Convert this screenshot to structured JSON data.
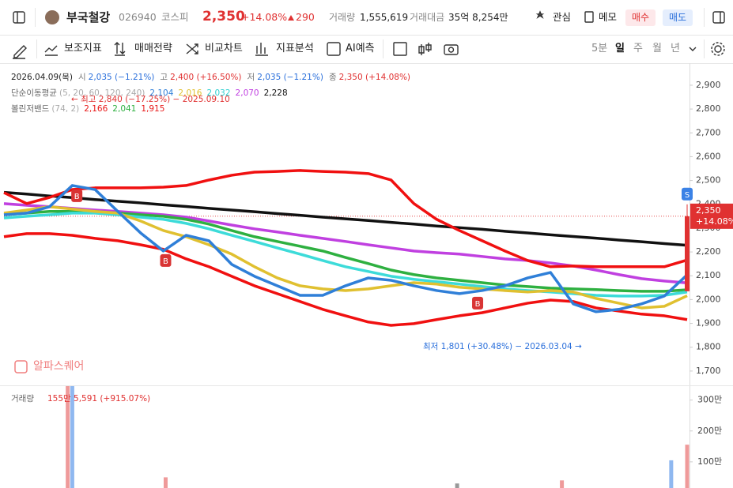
{
  "header": {
    "name": "부국철강",
    "code": "026940",
    "market": "코스피",
    "price": "2,350",
    "change_pct": "+14.08%",
    "change": "290",
    "volume_label": "거래량",
    "volume": "1,555,619",
    "amount_label": "거래대금",
    "amount": "35억 8,254만",
    "watch": "관심",
    "memo": "메모",
    "buy": "매수",
    "sell": "매도"
  },
  "toolbar": {
    "tools": [
      "보조지표",
      "매매전략",
      "비교차트",
      "지표분석",
      "AI예측"
    ],
    "periods": [
      "5분",
      "일",
      "주",
      "월",
      "년"
    ],
    "selected_period": 1
  },
  "legend": {
    "date": "2026.04.09(목)",
    "ohlc": [
      {
        "label": "시",
        "value": "2,035 (−1.21%)",
        "color": "#2a6fdb"
      },
      {
        "label": "고",
        "value": "2,400 (+16.50%)",
        "color": "#e03131"
      },
      {
        "label": "저",
        "value": "2,035 (−1.21%)",
        "color": "#2a6fdb"
      },
      {
        "label": "종",
        "value": "2,350 (+14.08%)",
        "color": "#e03131"
      }
    ],
    "ma": {
      "label": "단순이동평균",
      "params": "(5, 20, 60, 120, 240)",
      "values": [
        {
          "value": "2,104",
          "color": "#2f7fd8"
        },
        {
          "value": "2,016",
          "color": "#e0c030"
        },
        {
          "value": "2,032",
          "color": "#2fd0d0"
        },
        {
          "value": "2,070",
          "color": "#c040e0"
        },
        {
          "value": "2,228",
          "color": "#111111"
        }
      ]
    },
    "bb": {
      "label": "볼린저밴드",
      "params": "(74, 2)",
      "values": [
        {
          "value": "2,166",
          "color": "#e81818"
        },
        {
          "value": "2,041",
          "color": "#2eb040"
        },
        {
          "value": "1,915",
          "color": "#e81818"
        }
      ]
    }
  },
  "annotations": {
    "high": "← 최고 2,840 (−17.25%) − 2025.09.10",
    "low": "최저 1,801 (+30.48%) − 2026.03.04 →",
    "logo": "알파스퀘어"
  },
  "volume_legend": {
    "label": "거래량",
    "value": "155만 5,591 (+915.07%)"
  },
  "chart_data": {
    "type": "line",
    "xlim": [
      0,
      30
    ],
    "ylim": [
      1640,
      2976
    ],
    "yticks": [
      {
        "value": 1700,
        "label": "1,700"
      },
      {
        "value": 1800,
        "label": "1,800"
      },
      {
        "value": 1900,
        "label": "1,900"
      },
      {
        "value": 2000,
        "label": "2,000"
      },
      {
        "value": 2100,
        "label": "2,100"
      },
      {
        "value": 2200,
        "label": "2,200"
      },
      {
        "value": 2300,
        "label": "2,300"
      },
      {
        "value": 2400,
        "label": "2,400"
      },
      {
        "value": 2500,
        "label": "2,500"
      },
      {
        "value": 2600,
        "label": "2,600"
      },
      {
        "value": 2700,
        "label": "2,700"
      },
      {
        "value": 2800,
        "label": "2,800"
      },
      {
        "value": 2900,
        "label": "2,900"
      }
    ],
    "series": [
      {
        "color": "#111111",
        "values": [
          2450,
          2443,
          2435,
          2428,
          2420,
          2413,
          2406,
          2398,
          2391,
          2383,
          2376,
          2369,
          2361,
          2354,
          2346,
          2339,
          2332,
          2324,
          2317,
          2309,
          2302,
          2295,
          2287,
          2280,
          2272,
          2265,
          2258,
          2250,
          2243,
          2235,
          2228
        ]
      },
      {
        "color": "#c040e0",
        "values": [
          2403,
          2396,
          2390,
          2383,
          2376,
          2370,
          2363,
          2356,
          2346,
          2330,
          2313,
          2297,
          2284,
          2270,
          2257,
          2244,
          2230,
          2217,
          2204,
          2197,
          2191,
          2181,
          2171,
          2164,
          2154,
          2141,
          2124,
          2105,
          2088,
          2078,
          2070
        ]
      },
      {
        "color": "#2eb040",
        "values": [
          2356,
          2363,
          2370,
          2370,
          2370,
          2363,
          2356,
          2350,
          2337,
          2317,
          2290,
          2264,
          2244,
          2224,
          2204,
          2177,
          2151,
          2124,
          2105,
          2091,
          2081,
          2071,
          2061,
          2055,
          2048,
          2045,
          2042,
          2038,
          2035,
          2035,
          2041
        ]
      },
      {
        "color": "#3ddbd9",
        "values": [
          2343,
          2350,
          2356,
          2363,
          2363,
          2356,
          2346,
          2337,
          2320,
          2297,
          2270,
          2244,
          2217,
          2191,
          2164,
          2138,
          2118,
          2098,
          2085,
          2075,
          2065,
          2055,
          2045,
          2038,
          2032,
          2025,
          2018,
          2015,
          2015,
          2018,
          2032
        ]
      },
      {
        "color": "#e0c030",
        "values": [
          2363,
          2376,
          2390,
          2380,
          2370,
          2363,
          2330,
          2290,
          2264,
          2230,
          2191,
          2138,
          2091,
          2058,
          2045,
          2038,
          2045,
          2058,
          2071,
          2065,
          2052,
          2045,
          2038,
          2032,
          2038,
          2032,
          2005,
          1985,
          1965,
          1972,
          2016
        ]
      },
      {
        "color": "#f01010",
        "values": [
          2449,
          2403,
          2429,
          2462,
          2469,
          2469,
          2469,
          2472,
          2479,
          2502,
          2522,
          2535,
          2538,
          2542,
          2538,
          2535,
          2529,
          2502,
          2403,
          2337,
          2290,
          2247,
          2204,
          2164,
          2138,
          2141,
          2138,
          2138,
          2138,
          2138,
          2166
        ]
      },
      {
        "color": "#f01010",
        "values": [
          2264,
          2277,
          2277,
          2270,
          2257,
          2247,
          2230,
          2211,
          2171,
          2138,
          2098,
          2058,
          2025,
          1992,
          1959,
          1932,
          1906,
          1892,
          1899,
          1916,
          1932,
          1945,
          1965,
          1985,
          1998,
          1992,
          1965,
          1952,
          1939,
          1932,
          1916
        ]
      },
      {
        "color": "#2f7fd8",
        "values": [
          2356,
          2363,
          2390,
          2479,
          2462,
          2370,
          2280,
          2204,
          2270,
          2247,
          2148,
          2098,
          2058,
          2018,
          2018,
          2058,
          2091,
          2081,
          2058,
          2038,
          2025,
          2038,
          2058,
          2091,
          2114,
          1982,
          1949,
          1959,
          1982,
          2015,
          2104
        ]
      }
    ],
    "last_candle": {
      "open": 2035,
      "high": 2400,
      "low": 2035,
      "close": 2350,
      "color": "#e03131"
    },
    "price_tag": {
      "value": 2350,
      "label": "2,350",
      "change": "+14.08%",
      "color": "#e03131"
    },
    "signals": [
      {
        "label": "B",
        "x": 3.2,
        "value": 2436,
        "color": "#d93434"
      },
      {
        "label": "B",
        "x": 7.1,
        "value": 2164,
        "color": "#d93434"
      },
      {
        "label": "B",
        "x": 20.8,
        "value": 1985,
        "color": "#d93434"
      },
      {
        "label": "S",
        "x": 30,
        "value": 2443,
        "color": "#3b82e6"
      }
    ],
    "volume": {
      "x": [
        2.8,
        3,
        7.1,
        19.9,
        24.5,
        29.3,
        30
      ],
      "values": [
        3800000,
        3500000,
        500000,
        300000,
        400000,
        1050000,
        1555591
      ],
      "colors": [
        "#ef9a9a",
        "#8fb8f0",
        "#ef9a9a",
        "#999999",
        "#ef9a9a",
        "#8fb8f0",
        "#ef9a9a"
      ],
      "ylim": [
        0,
        3400000
      ],
      "yticks": [
        {
          "value": 1000000,
          "label": "100만"
        },
        {
          "value": 2000000,
          "label": "200만"
        },
        {
          "value": 3000000,
          "label": "300만"
        }
      ]
    }
  }
}
